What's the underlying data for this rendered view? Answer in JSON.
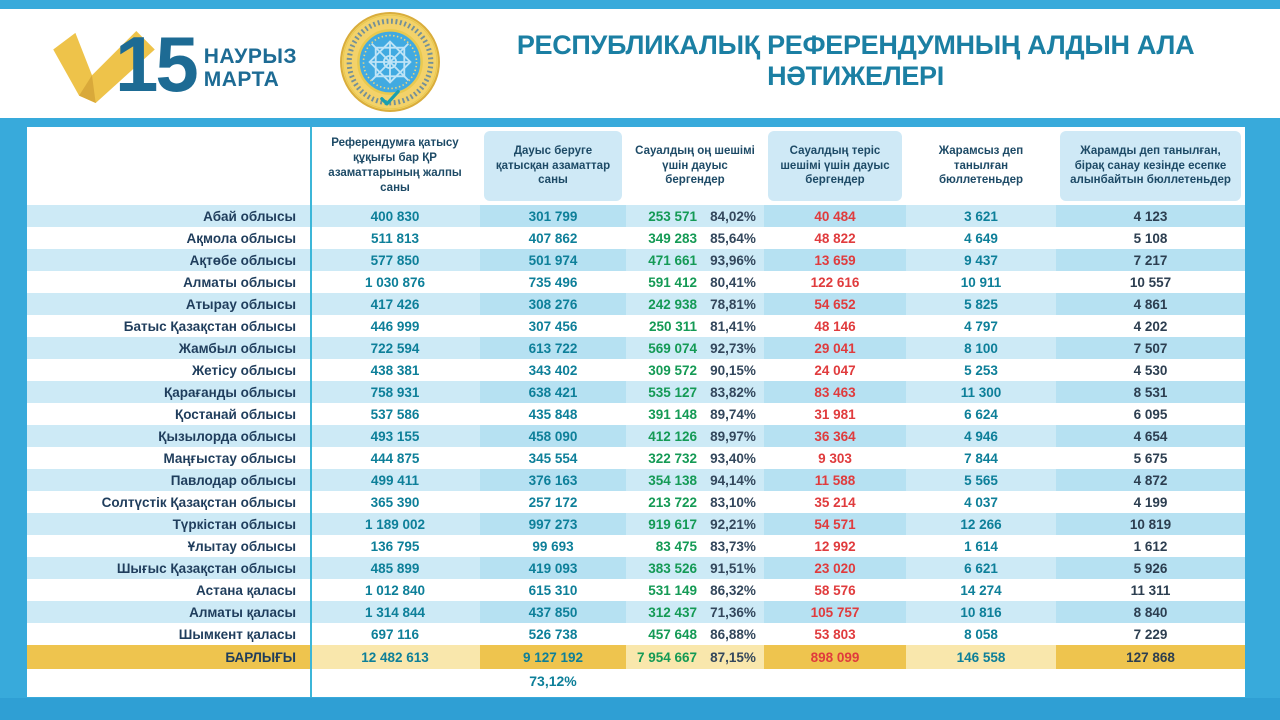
{
  "header": {
    "logo_check_icon": "gold-ballot-checkmark",
    "logo_day": "15",
    "logo_month_line1": "НАУРЫЗ",
    "logo_month_line2": "МАРТА",
    "emblem_icon": "central-referendum-commission-gold-seal"
  },
  "chart_data": {
    "type": "table",
    "title": "РЕСПУБЛИКАЛЫҚ РЕФЕРЕНДУМНЫҢ АЛДЫН АЛА НӘТИЖЕЛЕРІ",
    "columns": [
      "Референдумға қатысу құқығы бар ҚР азаматтарының жалпы саны",
      "Дауыс беруге қатысқан азаматтар саны",
      "Сауалдың оң шешімі үшін дауыс бергендер",
      "Сауалдың теріс шешімі үшін дауыс бергендер",
      "Жарамсыз деп танылған бюллетеньдер",
      "Жарамды деп танылған, бірақ санау кезінде есепке алынбайтын бюллетеньдер"
    ],
    "rows": [
      {
        "region": "Абай облысы",
        "values": [
          "400 830",
          "301 799",
          "253 571",
          "84,02%",
          "40 484",
          "3 621",
          "4 123"
        ]
      },
      {
        "region": "Ақмола облысы",
        "values": [
          "511 813",
          "407 862",
          "349 283",
          "85,64%",
          "48 822",
          "4 649",
          "5 108"
        ]
      },
      {
        "region": "Ақтөбе облысы",
        "values": [
          "577 850",
          "501 974",
          "471 661",
          "93,96%",
          "13 659",
          "9 437",
          "7 217"
        ]
      },
      {
        "region": "Алматы облысы",
        "values": [
          "1 030 876",
          "735 496",
          "591 412",
          "80,41%",
          "122 616",
          "10 911",
          "10 557"
        ]
      },
      {
        "region": "Атырау облысы",
        "values": [
          "417 426",
          "308 276",
          "242 938",
          "78,81%",
          "54 652",
          "5 825",
          "4 861"
        ]
      },
      {
        "region": "Батыс Қазақстан облысы",
        "values": [
          "446 999",
          "307 456",
          "250 311",
          "81,41%",
          "48 146",
          "4 797",
          "4 202"
        ]
      },
      {
        "region": "Жамбыл облысы",
        "values": [
          "722 594",
          "613 722",
          "569 074",
          "92,73%",
          "29 041",
          "8 100",
          "7 507"
        ]
      },
      {
        "region": "Жетісу облысы",
        "values": [
          "438 381",
          "343 402",
          "309 572",
          "90,15%",
          "24 047",
          "5 253",
          "4 530"
        ]
      },
      {
        "region": "Қарағанды облысы",
        "values": [
          "758 931",
          "638 421",
          "535 127",
          "83,82%",
          "83 463",
          "11 300",
          "8 531"
        ]
      },
      {
        "region": "Қостанай облысы",
        "values": [
          "537 586",
          "435 848",
          "391 148",
          "89,74%",
          "31 981",
          "6 624",
          "6 095"
        ]
      },
      {
        "region": "Қызылорда облысы",
        "values": [
          "493 155",
          "458 090",
          "412 126",
          "89,97%",
          "36 364",
          "4 946",
          "4 654"
        ]
      },
      {
        "region": "Маңғыстау облысы",
        "values": [
          "444 875",
          "345 554",
          "322 732",
          "93,40%",
          "9 303",
          "7 844",
          "5 675"
        ]
      },
      {
        "region": "Павлодар облысы",
        "values": [
          "499 411",
          "376 163",
          "354 138",
          "94,14%",
          "11 588",
          "5 565",
          "4 872"
        ]
      },
      {
        "region": "Солтүстік Қазақстан облысы",
        "values": [
          "365 390",
          "257 172",
          "213 722",
          "83,10%",
          "35 214",
          "4 037",
          "4 199"
        ]
      },
      {
        "region": "Түркістан облысы",
        "values": [
          "1 189 002",
          "997 273",
          "919 617",
          "92,21%",
          "54 571",
          "12 266",
          "10 819"
        ]
      },
      {
        "region": "Ұлытау облысы",
        "values": [
          "136 795",
          "99 693",
          "83 475",
          "83,73%",
          "12 992",
          "1 614",
          "1 612"
        ]
      },
      {
        "region": "Шығыс Қазақстан облысы",
        "values": [
          "485 899",
          "419 093",
          "383 526",
          "91,51%",
          "23 020",
          "6 621",
          "5 926"
        ]
      },
      {
        "region": "Астана қаласы",
        "values": [
          "1 012 840",
          "615 310",
          "531 149",
          "86,32%",
          "58 576",
          "14 274",
          "11 311"
        ]
      },
      {
        "region": "Алматы қаласы",
        "values": [
          "1 314 844",
          "437 850",
          "312 437",
          "71,36%",
          "105 757",
          "10 816",
          "8 840"
        ]
      },
      {
        "region": "Шымкент қаласы",
        "values": [
          "697 116",
          "526 738",
          "457 648",
          "86,88%",
          "53 803",
          "8 058",
          "7 229"
        ]
      }
    ],
    "total": {
      "label": "БАРЛЫҒЫ",
      "values": [
        "12 482 613",
        "9 127 192",
        "7 954 667",
        "87,15%",
        "898 099",
        "146 558",
        "127 868"
      ]
    },
    "turnout_pct": "73,12%"
  },
  "colors": {
    "background": "#38aadb",
    "stripe": "#cdeaf6",
    "stripe_tint": "#b6e1f2",
    "total_gold": "#eec44e",
    "total_gold_light": "#f9e7ac",
    "teal_number": "#0d7f99",
    "green_number": "#149a55",
    "red_number": "#e03b3d",
    "dark_number": "#2c3e50",
    "title": "#1b7fa3"
  }
}
